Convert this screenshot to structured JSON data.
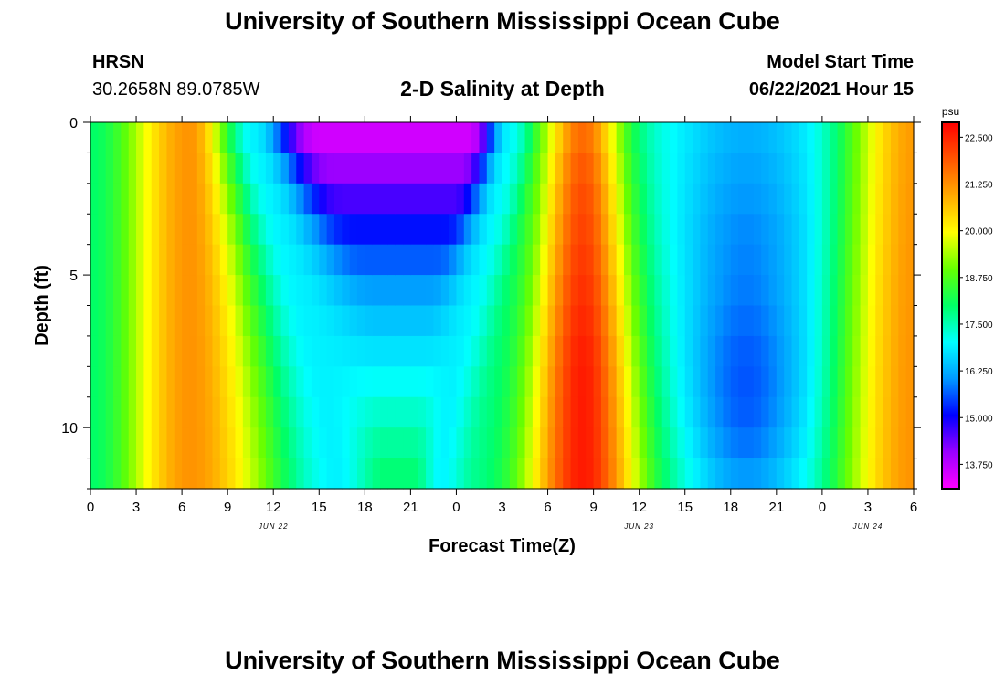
{
  "header": {
    "title": "University of Southern Mississippi Ocean Cube",
    "footer_title": "University of Southern Mississippi Ocean Cube",
    "station": "HRSN",
    "coordinates": "30.2658N  89.0785W",
    "plot_title": "2-D Salinity at Depth",
    "model_start_label": "Model Start Time",
    "model_start_value": "06/22/2021 Hour 15"
  },
  "chart_data": {
    "type": "heatmap",
    "title": "2-D Salinity at Depth",
    "xlabel": "Forecast Time(Z)",
    "ylabel": "Depth (ft)",
    "x_start_hour": 0,
    "x_end_hour": 54,
    "x_tick_labels": [
      "0",
      "3",
      "6",
      "9",
      "12",
      "15",
      "18",
      "21",
      "0",
      "3",
      "6",
      "9",
      "12",
      "15",
      "18",
      "21",
      "0",
      "3",
      "6"
    ],
    "date_labels": [
      {
        "label": "JUN 22",
        "hour": 12
      },
      {
        "label": "JUN 23",
        "hour": 36
      },
      {
        "label": "JUN 24",
        "hour": 51
      }
    ],
    "y_ticks": [
      0,
      5,
      10
    ],
    "ylim": [
      0,
      12
    ],
    "colorbar": {
      "unit": "psu",
      "min": 13.1,
      "max": 22.9,
      "tick_labels": [
        "22.500",
        "21.250",
        "20.000",
        "18.750",
        "17.500",
        "16.250",
        "15.000",
        "13.750"
      ],
      "colors": [
        "#ff00ff",
        "#9900ff",
        "#0000ff",
        "#0099ff",
        "#00ffff",
        "#00ff66",
        "#66ff00",
        "#ffff00",
        "#ffaa00",
        "#ff5500",
        "#ff0000"
      ]
    },
    "depth_levels_ft": [
      0,
      1,
      2,
      3,
      4,
      5,
      6,
      7,
      8,
      9,
      10,
      11,
      12
    ],
    "trough_min_psu": [
      13.3,
      13.8,
      14.3,
      14.9,
      15.4,
      15.9,
      16.3,
      16.6,
      16.9,
      17.2,
      17.5,
      17.8,
      18.0
    ],
    "trough_left_edge_hr": [
      10.5,
      11.0,
      11.6,
      12.2,
      12.8,
      13.4,
      13.9,
      14.4,
      14.9,
      15.3,
      15.7,
      16.0,
      16.3
    ],
    "trough_right_edge_hr": [
      27.5,
      27.2,
      26.8,
      26.4,
      25.9,
      25.4,
      25.0,
      24.6,
      24.2,
      23.8,
      23.5,
      23.2,
      23.0
    ],
    "peak2_psu": [
      21.6,
      21.8,
      22.0,
      22.1,
      22.2,
      22.3,
      22.4,
      22.5,
      22.6,
      22.6,
      22.6,
      22.6,
      22.6
    ],
    "trough2_min_psu": [
      16.3,
      16.2,
      16.1,
      16.0,
      15.9,
      15.9,
      15.8,
      15.7,
      15.6,
      15.6,
      15.7,
      15.9,
      16.2
    ]
  }
}
